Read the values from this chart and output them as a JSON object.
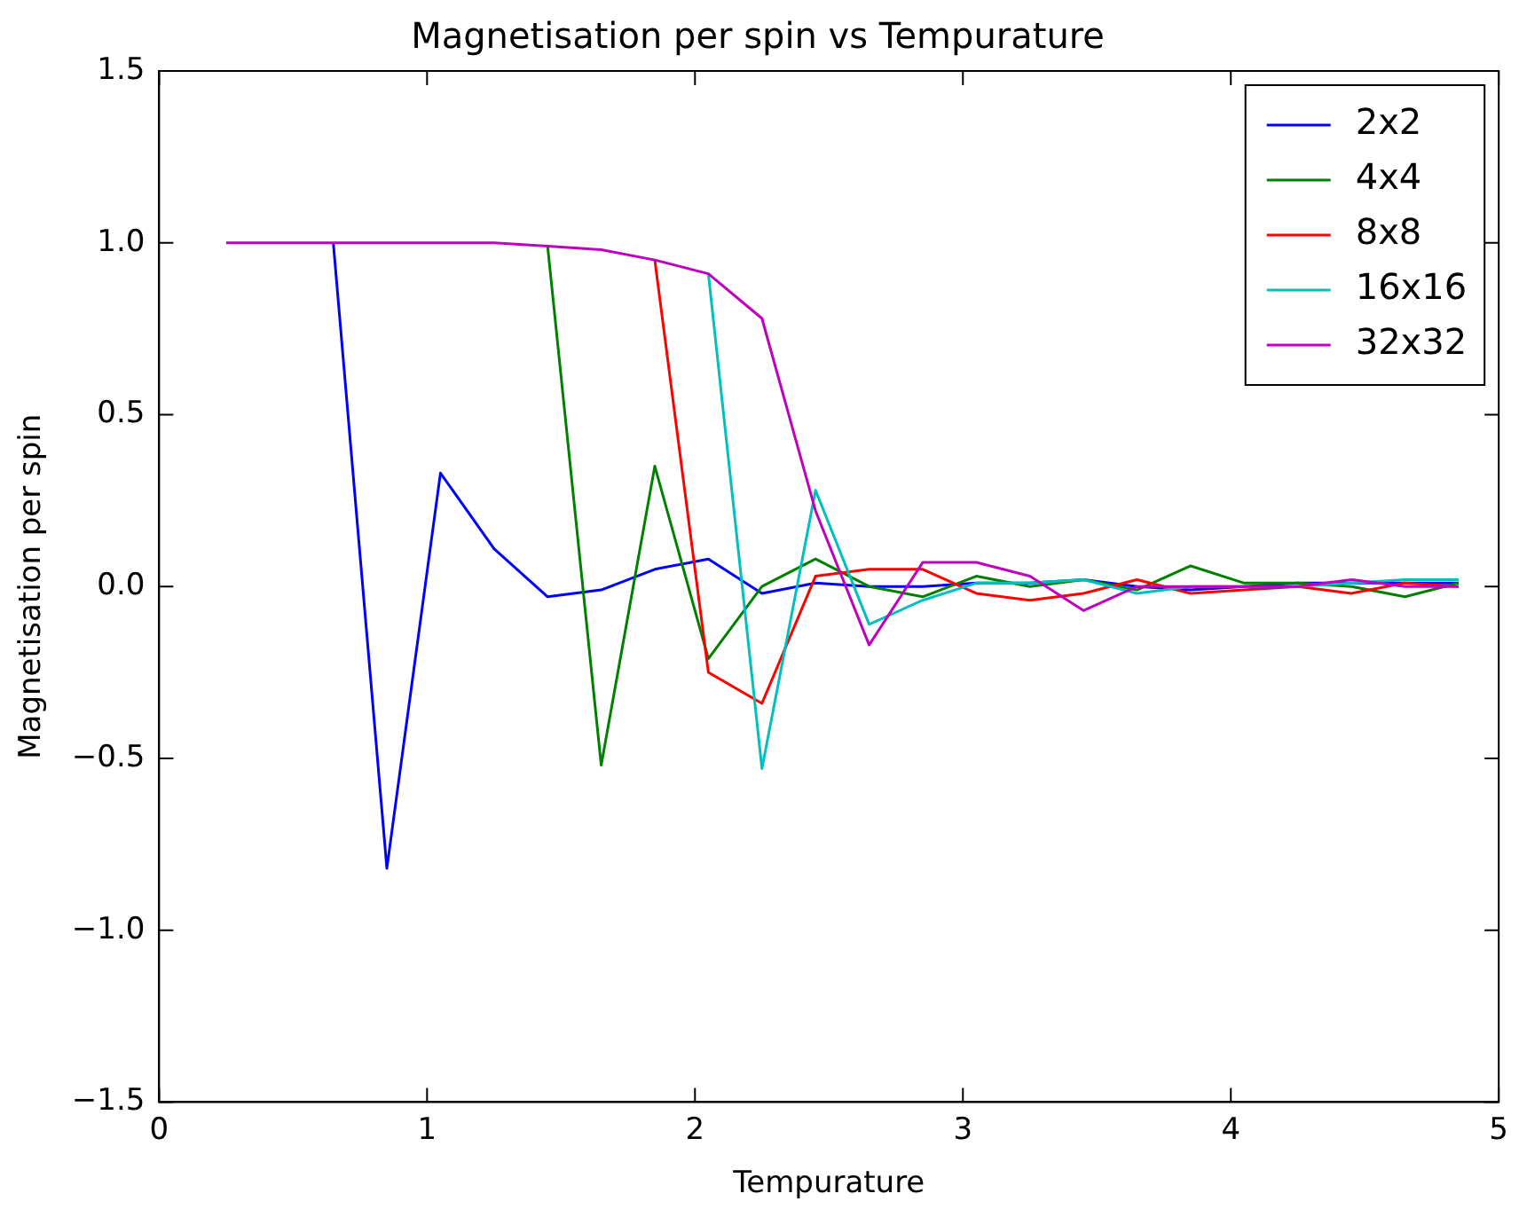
{
  "chart_data": {
    "type": "line",
    "title": "Magnetisation per spin vs Tempurature",
    "xlabel": "Tempurature",
    "ylabel": "Magnetisation per spin",
    "x": [
      0.25,
      0.45,
      0.65,
      0.85,
      1.05,
      1.25,
      1.45,
      1.65,
      1.85,
      2.05,
      2.25,
      2.45,
      2.65,
      2.85,
      3.05,
      3.25,
      3.45,
      3.65,
      3.85,
      4.05,
      4.25,
      4.45,
      4.65,
      4.85
    ],
    "series": [
      {
        "name": "2x2",
        "color": "#0000ff",
        "values": [
          null,
          null,
          1,
          -0.82,
          0.33,
          0.11,
          -0.03,
          -0.01,
          0.05,
          0.08,
          -0.02,
          0.01,
          0,
          0,
          0.01,
          0.01,
          0.02,
          0,
          -0.01,
          0,
          0.01,
          0.01,
          0.01,
          0.01
        ]
      },
      {
        "name": "4x4",
        "color": "#008000",
        "values": [
          null,
          null,
          null,
          null,
          null,
          null,
          0.99,
          -0.52,
          0.35,
          -0.21,
          0,
          0.08,
          0,
          -0.03,
          0.03,
          0,
          0.02,
          -0.01,
          0.06,
          0.01,
          0.01,
          0,
          -0.03,
          0.01
        ]
      },
      {
        "name": "8x8",
        "color": "#ff0000",
        "values": [
          null,
          null,
          null,
          null,
          null,
          null,
          null,
          null,
          0.95,
          -0.25,
          -0.34,
          0.03,
          0.05,
          0.05,
          -0.02,
          -0.04,
          -0.02,
          0.02,
          -0.02,
          -0.01,
          0,
          -0.02,
          0.01,
          0
        ]
      },
      {
        "name": "16x16",
        "color": "#00bfbf",
        "values": [
          null,
          null,
          null,
          null,
          null,
          null,
          null,
          null,
          null,
          0.91,
          -0.53,
          0.28,
          -0.11,
          -0.04,
          0.01,
          0.01,
          0.02,
          -0.02,
          0,
          0,
          0,
          0.01,
          0.02,
          0.02
        ]
      },
      {
        "name": "32x32",
        "color": "#bf00bf",
        "values": [
          1,
          1,
          1,
          1,
          1,
          1,
          0.99,
          0.98,
          0.95,
          0.91,
          0.78,
          0.22,
          -0.17,
          0.07,
          0.07,
          0.03,
          -0.07,
          0,
          0,
          0,
          0,
          0.02,
          0,
          0
        ]
      }
    ],
    "xlim": [
      0,
      5
    ],
    "xticks": [
      0,
      1,
      2,
      3,
      4,
      5
    ],
    "ylim": [
      -1.5,
      1.5
    ],
    "yticks": [
      {
        "value": -1.5,
        "label": "−1.5"
      },
      {
        "value": -1,
        "label": "−1.0"
      },
      {
        "value": -0.5,
        "label": "−0.5"
      },
      {
        "value": 0,
        "label": "0.0"
      },
      {
        "value": 0.5,
        "label": "0.5"
      },
      {
        "value": 1,
        "label": "1.0"
      },
      {
        "value": 1.5,
        "label": "1.5"
      }
    ],
    "grid": false,
    "legend": "top right",
    "marker": "none",
    "line_style": "solid"
  }
}
